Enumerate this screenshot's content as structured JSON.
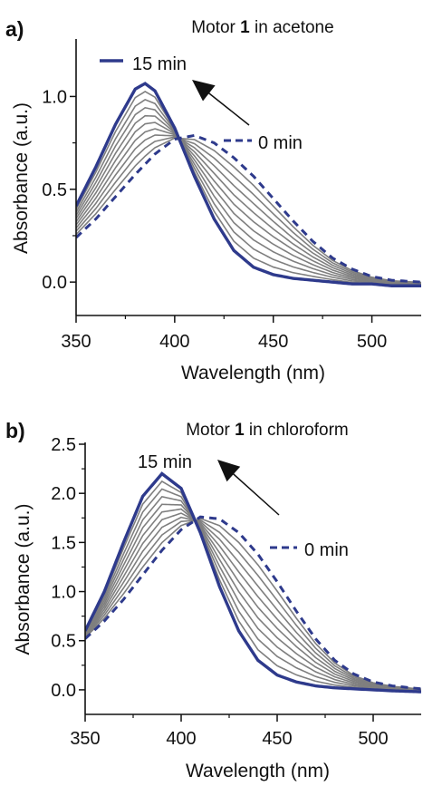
{
  "chart_data": [
    {
      "type": "line",
      "panel_label": "a)",
      "title": {
        "prefix": "Motor ",
        "bold": "1",
        "suffix": " in acetone"
      },
      "xlabel": "Wavelength (nm)",
      "ylabel": "Absorbance (a.u.)",
      "xlim": [
        350,
        525
      ],
      "ylim": [
        -0.18,
        1.3
      ],
      "xticks": [
        350,
        400,
        450,
        500
      ],
      "yticks": [
        0.0,
        0.5,
        1.0
      ],
      "ytick_labels": [
        "0.0",
        "0.5",
        "1.0"
      ],
      "legend": [
        {
          "label": "15 min",
          "style": "solid",
          "color": "#2e3a8c"
        },
        {
          "label": "0 min",
          "style": "dashed",
          "color": "#2e3a8c"
        }
      ],
      "annotations": [
        "arrow from 0 min to 15 min spectrum"
      ],
      "isosbestic_point": {
        "x": 403,
        "y": 0.79
      },
      "series": [
        {
          "name": "15 min",
          "style": "solid",
          "color": "#2e3a8c",
          "peak_x": 385,
          "peak_y": 1.07,
          "width": 22,
          "x": [
            350,
            360,
            370,
            380,
            385,
            390,
            400,
            410,
            420,
            430,
            440,
            450,
            460,
            470,
            480,
            490,
            500,
            510,
            525
          ],
          "y": [
            0.41,
            0.62,
            0.85,
            1.04,
            1.07,
            1.03,
            0.83,
            0.57,
            0.34,
            0.17,
            0.08,
            0.04,
            0.02,
            0.01,
            0.0,
            -0.01,
            -0.01,
            -0.02,
            -0.02
          ]
        },
        {
          "name": "0 min",
          "style": "dashed",
          "color": "#2e3a8c",
          "peak_x": 407,
          "peak_y": 0.79,
          "width": 40,
          "x": [
            350,
            360,
            370,
            380,
            390,
            400,
            410,
            420,
            430,
            440,
            450,
            460,
            470,
            480,
            490,
            500,
            510,
            525
          ],
          "y": [
            0.24,
            0.34,
            0.46,
            0.58,
            0.69,
            0.77,
            0.79,
            0.75,
            0.67,
            0.57,
            0.45,
            0.33,
            0.22,
            0.13,
            0.07,
            0.03,
            0.01,
            0.0
          ]
        }
      ],
      "intermediate_count": 9,
      "intermediate_color": "#7f7f7f"
    },
    {
      "type": "line",
      "panel_label": "b)",
      "title": {
        "prefix": "Motor ",
        "bold": "1",
        "suffix": " in chloroform"
      },
      "xlabel": "Wavelength (nm)",
      "ylabel": "Absorbance (a.u.)",
      "xlim": [
        350,
        525
      ],
      "ylim": [
        -0.25,
        2.5
      ],
      "xticks": [
        350,
        400,
        450,
        500
      ],
      "yticks": [
        0.0,
        0.5,
        1.0,
        1.5,
        2.0,
        2.5
      ],
      "ytick_labels": [
        "0.0",
        "0.5",
        "1.0",
        "1.5",
        "2.0",
        "2.5"
      ],
      "legend": [
        {
          "label": "15 min",
          "style": "solid",
          "color": "#2e3a8c"
        },
        {
          "label": "0 min",
          "style": "dashed",
          "color": "#2e3a8c"
        }
      ],
      "annotations": [
        "arrow from 0 min to 15 min spectrum"
      ],
      "isosbestic_point": {
        "x": 407,
        "y": 1.77
      },
      "series": [
        {
          "name": "15 min",
          "style": "solid",
          "color": "#2e3a8c",
          "peak_x": 389,
          "peak_y": 2.2,
          "width": 24,
          "x": [
            350,
            360,
            370,
            380,
            390,
            400,
            410,
            420,
            430,
            440,
            450,
            460,
            470,
            480,
            490,
            500,
            510,
            525
          ],
          "y": [
            0.6,
            1.0,
            1.5,
            1.97,
            2.2,
            2.05,
            1.6,
            1.05,
            0.6,
            0.3,
            0.15,
            0.08,
            0.04,
            0.02,
            0.01,
            0.0,
            -0.01,
            -0.02
          ]
        },
        {
          "name": "0 min",
          "style": "dashed",
          "color": "#2e3a8c",
          "peak_x": 412,
          "peak_y": 1.76,
          "width": 42,
          "x": [
            350,
            360,
            370,
            380,
            390,
            400,
            410,
            420,
            430,
            440,
            450,
            460,
            470,
            480,
            490,
            500,
            510,
            525
          ],
          "y": [
            0.52,
            0.7,
            0.92,
            1.17,
            1.42,
            1.63,
            1.76,
            1.74,
            1.6,
            1.38,
            1.1,
            0.8,
            0.52,
            0.3,
            0.16,
            0.08,
            0.04,
            0.01
          ]
        }
      ],
      "intermediate_count": 9,
      "intermediate_color": "#7f7f7f"
    }
  ]
}
